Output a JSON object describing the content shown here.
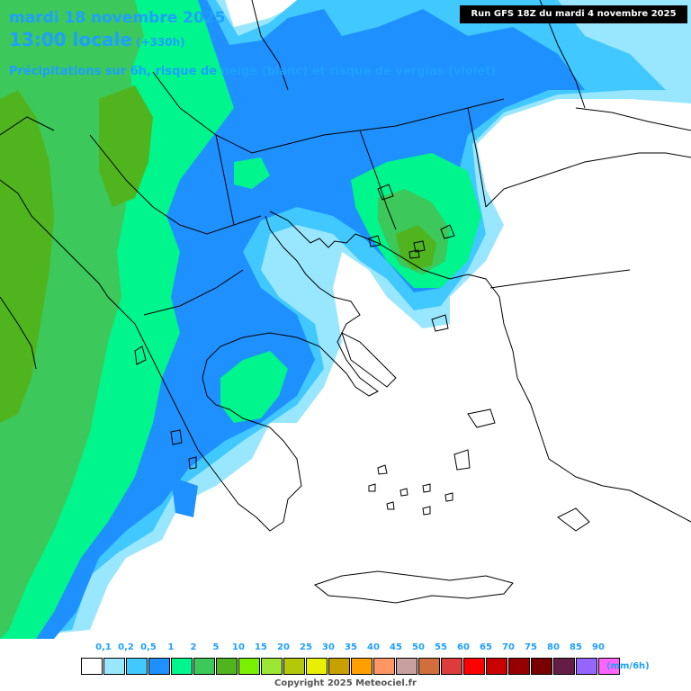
{
  "header": {
    "date": "mardi 18 novembre 2025",
    "time": "13:00 locale",
    "lead": "(+330h)",
    "subtitle": "Précipitations sur 6h, risque de neige (blanc) et risque de verglas (violet)"
  },
  "run_banner": "Run GFS 18Z du mardi 4 novembre 2025",
  "legend": {
    "ticks": [
      "0,1",
      "0,2",
      "0,5",
      "1",
      "2",
      "5",
      "10",
      "15",
      "20",
      "25",
      "30",
      "35",
      "40",
      "45",
      "50",
      "55",
      "60",
      "65",
      "70",
      "75",
      "80",
      "85",
      "90"
    ],
    "swatch_colors": [
      "#ffffff",
      "#99e6ff",
      "#40c8ff",
      "#1e90ff",
      "#00f58c",
      "#3cc85a",
      "#50b41e",
      "#78f000",
      "#9ee636",
      "#b4c80a",
      "#e6f000",
      "#c8a000",
      "#ffa000",
      "#ff9664",
      "#c8a0a0",
      "#d26e3c",
      "#dc3c3c",
      "#ff0000",
      "#c80000",
      "#960000",
      "#780000",
      "#641e46",
      "#9664ff",
      "#ff64ff"
    ],
    "unit": "(mm/6h)"
  },
  "copyright": "Copyright 2025 Meteociel.fr",
  "colors": {
    "precip_light": "#99e6ff",
    "precip_01": "#40c8ff",
    "precip_05": "#1e90ff",
    "precip_1": "#00f58c",
    "precip_2": "#3cc85a",
    "precip_5": "#50b41e",
    "title": "#1ea0ff"
  }
}
